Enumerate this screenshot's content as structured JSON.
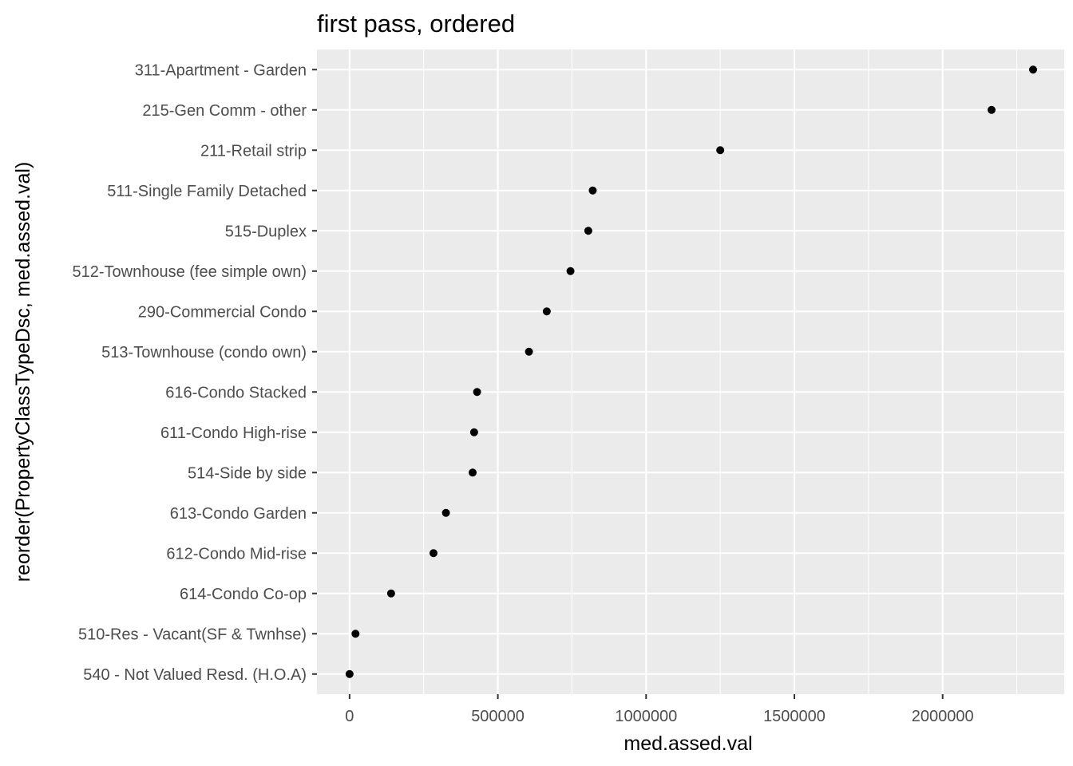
{
  "chart_data": {
    "type": "scatter",
    "title": "first pass, ordered",
    "xlabel": "med.assed.val",
    "ylabel": "reorder(PropertyClassTypeDsc, med.assed.val)",
    "xlim": [
      -110000,
      2410000
    ],
    "x_ticks": [
      0,
      500000,
      1000000,
      1500000,
      2000000
    ],
    "x_tick_labels": [
      "0",
      "500000",
      "1000000",
      "1500000",
      "2000000"
    ],
    "grid": true,
    "categories": [
      "311-Apartment - Garden",
      "215-Gen Comm - other",
      "211-Retail strip",
      "511-Single Family Detached",
      "515-Duplex",
      "512-Townhouse (fee simple own)",
      "290-Commercial Condo",
      "513-Townhouse (condo own)",
      "616-Condo Stacked",
      "611-Condo High-rise",
      "514-Side by side",
      "613-Condo Garden",
      "612-Condo Mid-rise",
      "614-Condo Co-op",
      "510-Res - Vacant(SF & Twnhse)",
      "540 - Not Valued Resd. (H.O.A)"
    ],
    "values": [
      2305000,
      2165000,
      1250000,
      820000,
      805000,
      745000,
      665000,
      605000,
      430000,
      420000,
      415000,
      325000,
      283000,
      140000,
      20000,
      0
    ]
  }
}
